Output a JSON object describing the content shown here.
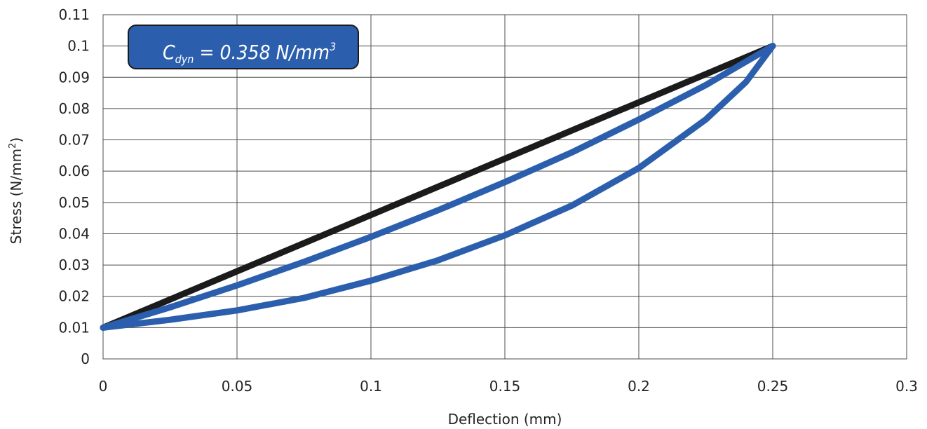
{
  "chart_data": {
    "type": "line",
    "title": "",
    "xlabel": "Deflection (mm)",
    "ylabel_main": "Stress (N/mm",
    "ylabel_sup": "2",
    "ylabel_end": ")",
    "xlim": [
      0,
      0.3
    ],
    "ylim": [
      0,
      0.11
    ],
    "xticks": [
      "0",
      "0.05",
      "0.1",
      "0.15",
      "0.2",
      "0.25",
      "0.3"
    ],
    "yticks": [
      "0",
      "0.01",
      "0.02",
      "0.03",
      "0.04",
      "0.05",
      "0.06",
      "0.07",
      "0.08",
      "0.09",
      "0.1",
      "0.11"
    ],
    "grid": true,
    "legend": "none",
    "series": [
      {
        "color": "#1b1b1b",
        "x": [
          0,
          0.25
        ],
        "y": [
          0.01,
          0.1
        ]
      },
      {
        "color": "#2b5fad",
        "x": [
          0,
          0.025,
          0.05,
          0.075,
          0.1,
          0.125,
          0.15,
          0.175,
          0.2,
          0.225,
          0.25
        ],
        "y": [
          0.01,
          0.0165,
          0.0235,
          0.031,
          0.039,
          0.0475,
          0.0565,
          0.066,
          0.0765,
          0.0875,
          0.1
        ]
      },
      {
        "color": "#2b5fad",
        "x": [
          0,
          0.025,
          0.05,
          0.075,
          0.1,
          0.125,
          0.15,
          0.175,
          0.2,
          0.225,
          0.24,
          0.25
        ],
        "y": [
          0.01,
          0.0125,
          0.0155,
          0.0195,
          0.025,
          0.0315,
          0.0395,
          0.049,
          0.061,
          0.0765,
          0.0885,
          0.1
        ]
      }
    ],
    "annotation": {
      "c_main": "C",
      "c_sub": "dyn",
      "value_text": " = 0.358 N/mm",
      "value_sup": "3",
      "fill": "#2b5fad",
      "border": "#1b1b1b"
    }
  }
}
